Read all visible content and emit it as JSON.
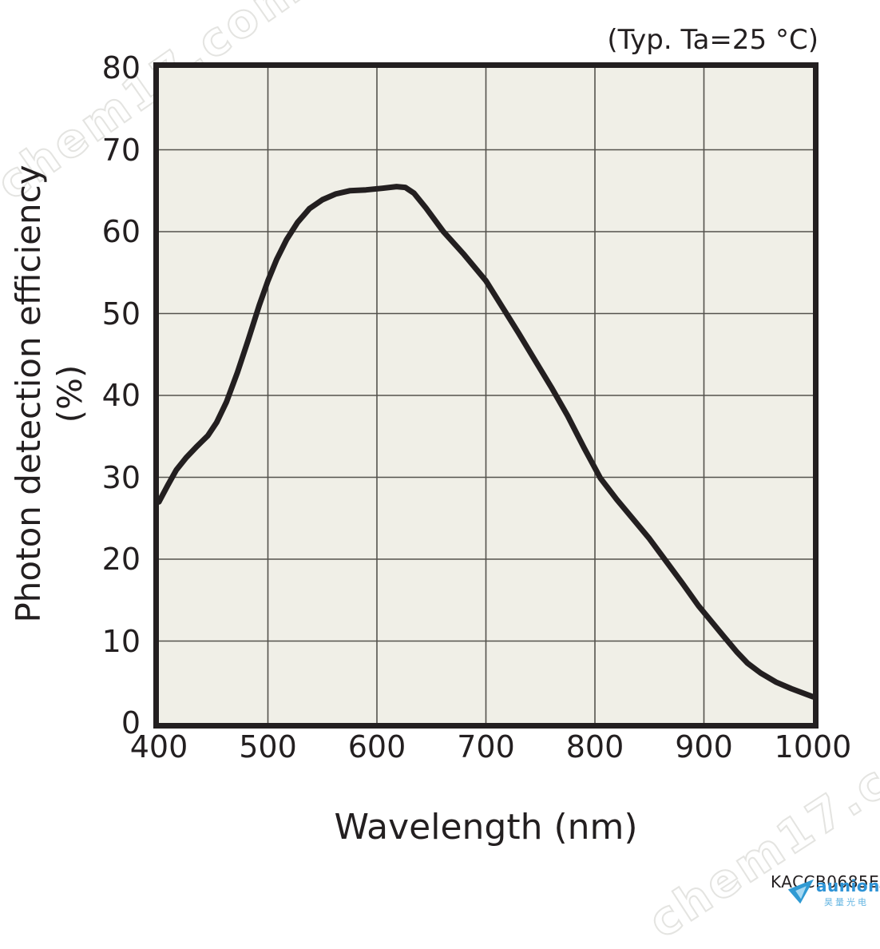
{
  "chart": {
    "annotation": "(Typ. Ta=25 °C)",
    "xlabel": "Wavelength (nm)",
    "ylabel": "Photon detection efficiency (%)",
    "footnote": "KACCB0685EA"
  },
  "watermark": {
    "text": "chem17.com"
  },
  "logo": {
    "name": "aunion",
    "subtitle": "昊量光电"
  },
  "chart_data": {
    "type": "line",
    "title": "(Typ. Ta=25 °C)",
    "xlabel": "Wavelength (nm)",
    "ylabel": "Photon detection efficiency (%)",
    "xlim": [
      400,
      1000
    ],
    "ylim": [
      0,
      80
    ],
    "xticks": [
      400,
      500,
      600,
      700,
      800,
      900,
      1000
    ],
    "yticks": [
      0,
      10,
      20,
      30,
      40,
      50,
      60,
      70,
      80
    ],
    "grid": true,
    "legend": false,
    "colors": {
      "curve": "#231f20",
      "grid": "#54524d",
      "plot_background": "#f0efe7",
      "frame": "#231f20",
      "logo_blue": "#2e93d5"
    },
    "series": [
      {
        "name": "Photon detection efficiency",
        "points": [
          [
            400,
            27
          ],
          [
            408,
            29
          ],
          [
            416,
            30.9
          ],
          [
            425,
            32.4
          ],
          [
            435,
            33.8
          ],
          [
            445,
            35.1
          ],
          [
            453,
            36.7
          ],
          [
            462,
            39.2
          ],
          [
            472,
            42.8
          ],
          [
            482,
            46.8
          ],
          [
            492,
            51
          ],
          [
            500,
            54
          ],
          [
            508,
            56.6
          ],
          [
            517,
            59
          ],
          [
            527,
            61.1
          ],
          [
            538,
            62.8
          ],
          [
            550,
            63.9
          ],
          [
            562,
            64.6
          ],
          [
            575,
            65
          ],
          [
            590,
            65.1
          ],
          [
            605,
            65.3
          ],
          [
            618,
            65.5
          ],
          [
            626,
            65.4
          ],
          [
            634,
            64.7
          ],
          [
            645,
            62.9
          ],
          [
            661,
            60
          ],
          [
            680,
            57.2
          ],
          [
            700,
            54
          ],
          [
            715,
            50.8
          ],
          [
            730,
            47.6
          ],
          [
            745,
            44.3
          ],
          [
            760,
            41
          ],
          [
            775,
            37.5
          ],
          [
            790,
            33.6
          ],
          [
            805,
            29.9
          ],
          [
            820,
            27.3
          ],
          [
            835,
            24.9
          ],
          [
            850,
            22.5
          ],
          [
            865,
            19.8
          ],
          [
            880,
            17.1
          ],
          [
            895,
            14.3
          ],
          [
            905,
            12.7
          ],
          [
            918,
            10.6
          ],
          [
            930,
            8.7
          ],
          [
            940,
            7.3
          ],
          [
            952,
            6.1
          ],
          [
            966,
            5
          ],
          [
            980,
            4.2
          ],
          [
            1000,
            3.2
          ]
        ]
      }
    ]
  }
}
